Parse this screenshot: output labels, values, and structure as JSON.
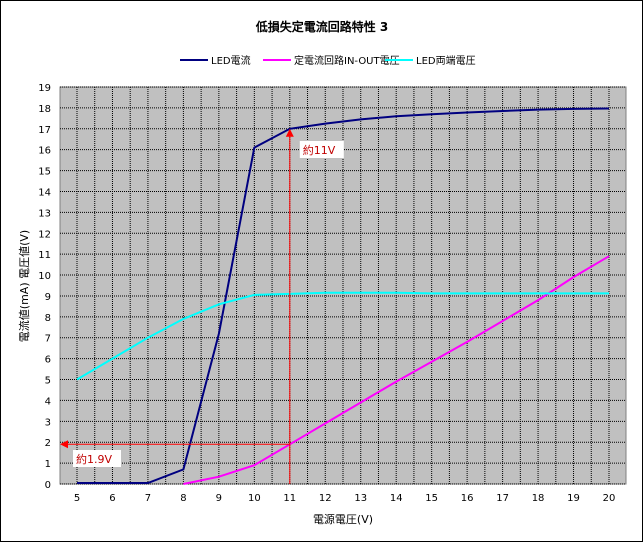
{
  "chart_data": {
    "type": "line",
    "title": "低損失定電流回路特性 3",
    "xlabel": "電源電圧(V)",
    "ylabel": "電流値(mA) 電圧値(V)",
    "xlim": [
      5,
      20
    ],
    "ylim": [
      0,
      19
    ],
    "x_ticks": [
      5,
      6,
      7,
      8,
      9,
      10,
      11,
      12,
      13,
      14,
      15,
      16,
      17,
      18,
      19,
      20
    ],
    "y_ticks": [
      0,
      1,
      2,
      3,
      4,
      5,
      6,
      7,
      8,
      9,
      10,
      11,
      12,
      13,
      14,
      15,
      16,
      17,
      18,
      19
    ],
    "grid": true,
    "legend_position": "top",
    "plot_background": "#c0c0c0",
    "series": [
      {
        "name": "LED電流",
        "color": "#000080",
        "x": [
          5,
          6,
          7,
          8,
          9,
          10,
          11,
          12,
          13,
          14,
          15,
          16,
          17,
          18,
          19,
          20
        ],
        "values": [
          0.05,
          0.05,
          0.05,
          0.7,
          7.2,
          16.1,
          17.0,
          17.25,
          17.45,
          17.6,
          17.7,
          17.78,
          17.85,
          17.92,
          17.95,
          17.97
        ]
      },
      {
        "name": "定電流回路IN-OUT電圧",
        "color": "#ff00ff",
        "x": [
          8,
          9,
          10,
          11,
          12,
          13,
          14,
          15,
          16,
          17,
          18,
          19,
          20
        ],
        "values": [
          0.0,
          0.35,
          0.9,
          1.9,
          2.9,
          3.9,
          4.9,
          5.85,
          6.8,
          7.8,
          8.8,
          9.9,
          10.9
        ]
      },
      {
        "name": "LED両端電圧",
        "color": "#00ffff",
        "x": [
          5,
          6,
          7,
          8,
          9,
          10,
          11,
          12,
          13,
          14,
          15,
          16,
          17,
          18,
          19,
          20
        ],
        "values": [
          5.0,
          6.0,
          7.0,
          7.9,
          8.6,
          9.05,
          9.1,
          9.15,
          9.15,
          9.15,
          9.12,
          9.12,
          9.12,
          9.12,
          9.12,
          9.12
        ]
      }
    ],
    "annotations": [
      {
        "text": "約11V",
        "color": "#ff0000"
      },
      {
        "text": "約1.9V",
        "color": "#ff0000"
      }
    ]
  }
}
